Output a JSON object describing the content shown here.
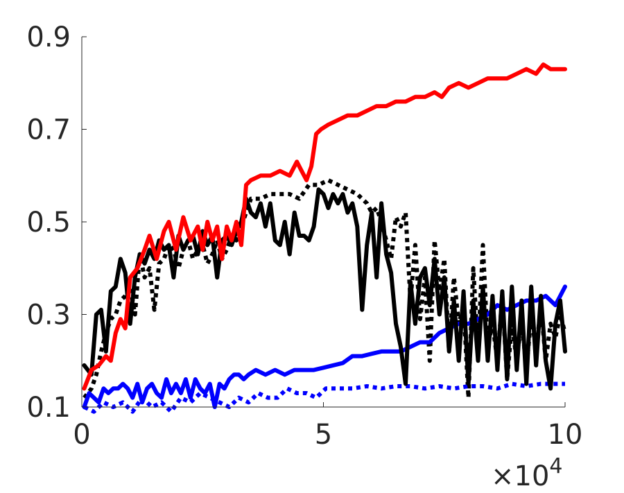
{
  "chart_data": {
    "type": "line",
    "title": "",
    "xlabel": "",
    "ylabel": "",
    "xlim": [
      0,
      100000
    ],
    "ylim": [
      0.1,
      0.9
    ],
    "x_multiplier": {
      "base": "×10",
      "exponent": "4"
    },
    "xticks": [
      {
        "value": 0,
        "label": "0"
      },
      {
        "value": 50000,
        "label": "5"
      },
      {
        "value": 100000,
        "label": "10"
      }
    ],
    "yticks": [
      {
        "value": 0.1,
        "label": "0.1"
      },
      {
        "value": 0.3,
        "label": "0.3"
      },
      {
        "value": 0.5,
        "label": "0.5"
      },
      {
        "value": 0.7,
        "label": "0.7"
      },
      {
        "value": 0.9,
        "label": "0.9"
      }
    ],
    "grid": false,
    "legend": "none",
    "series": [
      {
        "color": "#ff0000",
        "dash": "solid",
        "x": [
          500,
          2000,
          3500,
          5000,
          6000,
          7000,
          8000,
          9000,
          10000,
          11500,
          13000,
          14000,
          15500,
          17000,
          18000,
          19500,
          21000,
          22500,
          24000,
          25000,
          26000,
          27000,
          28000,
          29000,
          30000,
          31000,
          32000,
          33000,
          34000,
          35000,
          37000,
          39000,
          41000,
          43000,
          44500,
          45500,
          46500,
          47500,
          48500,
          49500,
          51000,
          53000,
          55000,
          57000,
          59000,
          61000,
          63000,
          65000,
          67000,
          69000,
          71000,
          73000,
          74500,
          76000,
          78000,
          80000,
          82000,
          84000,
          86000,
          88000,
          90000,
          92000,
          94000,
          95500,
          97000,
          98500,
          100000
        ],
        "y": [
          0.14,
          0.18,
          0.19,
          0.21,
          0.2,
          0.26,
          0.29,
          0.27,
          0.38,
          0.4,
          0.44,
          0.47,
          0.42,
          0.48,
          0.5,
          0.44,
          0.51,
          0.46,
          0.49,
          0.44,
          0.5,
          0.46,
          0.49,
          0.42,
          0.49,
          0.46,
          0.5,
          0.45,
          0.58,
          0.59,
          0.6,
          0.6,
          0.61,
          0.6,
          0.63,
          0.61,
          0.59,
          0.62,
          0.69,
          0.7,
          0.71,
          0.72,
          0.73,
          0.73,
          0.74,
          0.75,
          0.75,
          0.76,
          0.76,
          0.77,
          0.77,
          0.78,
          0.77,
          0.79,
          0.8,
          0.79,
          0.8,
          0.81,
          0.81,
          0.81,
          0.82,
          0.83,
          0.82,
          0.84,
          0.83,
          0.83,
          0.83
        ]
      },
      {
        "color": "#000000",
        "dash": "solid",
        "x": [
          500,
          2000,
          3000,
          4000,
          5000,
          6000,
          7000,
          8000,
          9000,
          10000,
          11000,
          12000,
          13000,
          14000,
          15000,
          16000,
          17000,
          18000,
          19000,
          20000,
          21000,
          22000,
          23000,
          24000,
          25000,
          26000,
          27000,
          28000,
          29000,
          30000,
          31000,
          32000,
          33000,
          34000,
          35000,
          36000,
          37000,
          38000,
          39000,
          40000,
          41000,
          42000,
          43000,
          44000,
          45000,
          46000,
          47000,
          48000,
          49000,
          50000,
          51000,
          52000,
          53000,
          54000,
          55000,
          56000,
          57000,
          58000,
          59000,
          60000,
          61000,
          62000,
          63000,
          64000,
          65000,
          66000,
          67000,
          68000,
          69000,
          70000,
          71000,
          72000,
          73000,
          74000,
          75000,
          76000,
          77000,
          78000,
          79000,
          80000,
          81000,
          82000,
          83000,
          84000,
          85000,
          86000,
          87000,
          88000,
          89000,
          90000,
          91000,
          92000,
          93000,
          94000,
          95000,
          96000,
          97000,
          98000,
          99000,
          100000
        ],
        "y": [
          0.19,
          0.17,
          0.3,
          0.31,
          0.22,
          0.35,
          0.36,
          0.42,
          0.39,
          0.28,
          0.38,
          0.43,
          0.41,
          0.44,
          0.42,
          0.46,
          0.44,
          0.45,
          0.38,
          0.47,
          0.44,
          0.46,
          0.47,
          0.43,
          0.48,
          0.45,
          0.47,
          0.38,
          0.46,
          0.47,
          0.45,
          0.48,
          0.5,
          0.55,
          0.52,
          0.51,
          0.54,
          0.49,
          0.54,
          0.46,
          0.45,
          0.5,
          0.43,
          0.52,
          0.47,
          0.47,
          0.46,
          0.49,
          0.57,
          0.56,
          0.53,
          0.56,
          0.54,
          0.56,
          0.52,
          0.54,
          0.49,
          0.31,
          0.45,
          0.52,
          0.38,
          0.54,
          0.43,
          0.39,
          0.28,
          0.23,
          0.15,
          0.37,
          0.28,
          0.38,
          0.4,
          0.32,
          0.42,
          0.3,
          0.38,
          0.22,
          0.33,
          0.2,
          0.35,
          0.15,
          0.33,
          0.2,
          0.36,
          0.2,
          0.34,
          0.18,
          0.35,
          0.16,
          0.36,
          0.18,
          0.33,
          0.15,
          0.36,
          0.19,
          0.34,
          0.2,
          0.14,
          0.28,
          0.33,
          0.22
        ]
      },
      {
        "color": "#000000",
        "dash": "dotted",
        "x": [
          500,
          2000,
          3000,
          4000,
          5000,
          6000,
          7000,
          8000,
          9000,
          10000,
          11000,
          12000,
          13000,
          14000,
          15000,
          16000,
          17000,
          18000,
          19000,
          20000,
          21000,
          22000,
          23000,
          24000,
          25000,
          26000,
          27000,
          28000,
          29000,
          30000,
          31000,
          32000,
          33000,
          35000,
          37000,
          39000,
          41000,
          43000,
          45000,
          47000,
          49000,
          51000,
          53000,
          55000,
          57000,
          59000,
          60000,
          61000,
          62000,
          63000,
          64000,
          65000,
          66000,
          67000,
          68000,
          69000,
          70000,
          71000,
          72000,
          73000,
          74000,
          75000,
          76000,
          77000,
          78000,
          79000,
          80000,
          81000,
          82000,
          83000,
          84000,
          85000,
          86000,
          87000,
          88000,
          89000,
          90000,
          91000,
          92000,
          93000,
          94000,
          95000,
          96000,
          97000,
          98000,
          99000,
          100000
        ],
        "y": [
          0.12,
          0.14,
          0.17,
          0.22,
          0.26,
          0.29,
          0.3,
          0.33,
          0.34,
          0.36,
          0.3,
          0.43,
          0.38,
          0.4,
          0.31,
          0.41,
          0.42,
          0.45,
          0.44,
          0.4,
          0.44,
          0.46,
          0.42,
          0.44,
          0.45,
          0.41,
          0.43,
          0.46,
          0.42,
          0.44,
          0.47,
          0.46,
          0.49,
          0.55,
          0.55,
          0.56,
          0.56,
          0.56,
          0.55,
          0.58,
          0.58,
          0.59,
          0.58,
          0.57,
          0.56,
          0.54,
          0.52,
          0.53,
          0.5,
          0.46,
          0.42,
          0.51,
          0.49,
          0.52,
          0.33,
          0.45,
          0.29,
          0.38,
          0.2,
          0.46,
          0.35,
          0.42,
          0.22,
          0.38,
          0.28,
          0.32,
          0.12,
          0.4,
          0.22,
          0.45,
          0.23,
          0.28,
          0.2,
          0.34,
          0.16,
          0.28,
          0.2,
          0.29,
          0.18,
          0.3,
          0.22,
          0.32,
          0.2,
          0.28,
          0.25,
          0.3,
          0.26
        ]
      },
      {
        "color": "#0000ff",
        "dash": "solid",
        "x": [
          500,
          1500,
          2500,
          3500,
          4500,
          5500,
          6500,
          7500,
          8500,
          9500,
          10500,
          11500,
          12500,
          13500,
          14500,
          15500,
          16500,
          17500,
          18500,
          19500,
          20500,
          21500,
          22500,
          23500,
          24500,
          25500,
          26500,
          27500,
          28500,
          29500,
          30500,
          31500,
          32500,
          33500,
          34500,
          36000,
          38000,
          40000,
          42000,
          44000,
          46000,
          48000,
          50000,
          52000,
          54000,
          56000,
          58000,
          60000,
          62000,
          64000,
          66000,
          68000,
          70000,
          72000,
          74000,
          76000,
          78000,
          80000,
          82000,
          84000,
          86000,
          88000,
          90000,
          92000,
          94000,
          96000,
          98000,
          100000
        ],
        "y": [
          0.1,
          0.13,
          0.12,
          0.11,
          0.14,
          0.13,
          0.14,
          0.14,
          0.15,
          0.14,
          0.12,
          0.15,
          0.11,
          0.14,
          0.15,
          0.13,
          0.12,
          0.16,
          0.13,
          0.15,
          0.13,
          0.16,
          0.12,
          0.16,
          0.14,
          0.13,
          0.15,
          0.1,
          0.15,
          0.14,
          0.16,
          0.17,
          0.17,
          0.16,
          0.17,
          0.18,
          0.17,
          0.18,
          0.17,
          0.18,
          0.18,
          0.18,
          0.185,
          0.19,
          0.195,
          0.21,
          0.21,
          0.215,
          0.22,
          0.22,
          0.22,
          0.23,
          0.24,
          0.24,
          0.26,
          0.27,
          0.28,
          0.28,
          0.29,
          0.3,
          0.32,
          0.31,
          0.32,
          0.33,
          0.33,
          0.34,
          0.32,
          0.36
        ]
      },
      {
        "color": "#0000ff",
        "dash": "dotted",
        "x": [
          500,
          2500,
          4500,
          6500,
          8500,
          10500,
          12500,
          14500,
          16500,
          18500,
          20500,
          22500,
          24500,
          26500,
          28500,
          30500,
          32500,
          34500,
          36500,
          38500,
          40500,
          42500,
          44500,
          46500,
          48500,
          50500,
          53000,
          56000,
          59000,
          62000,
          65000,
          68000,
          71000,
          74000,
          77000,
          80000,
          83000,
          86000,
          89000,
          92000,
          95000,
          98000,
          100000
        ],
        "y": [
          0.1,
          0.09,
          0.11,
          0.1,
          0.11,
          0.09,
          0.12,
          0.1,
          0.11,
          0.09,
          0.12,
          0.11,
          0.13,
          0.12,
          0.11,
          0.1,
          0.12,
          0.11,
          0.13,
          0.12,
          0.12,
          0.14,
          0.13,
          0.13,
          0.12,
          0.14,
          0.14,
          0.14,
          0.145,
          0.14,
          0.145,
          0.145,
          0.14,
          0.145,
          0.14,
          0.145,
          0.145,
          0.14,
          0.15,
          0.145,
          0.15,
          0.15,
          0.15
        ]
      }
    ]
  }
}
